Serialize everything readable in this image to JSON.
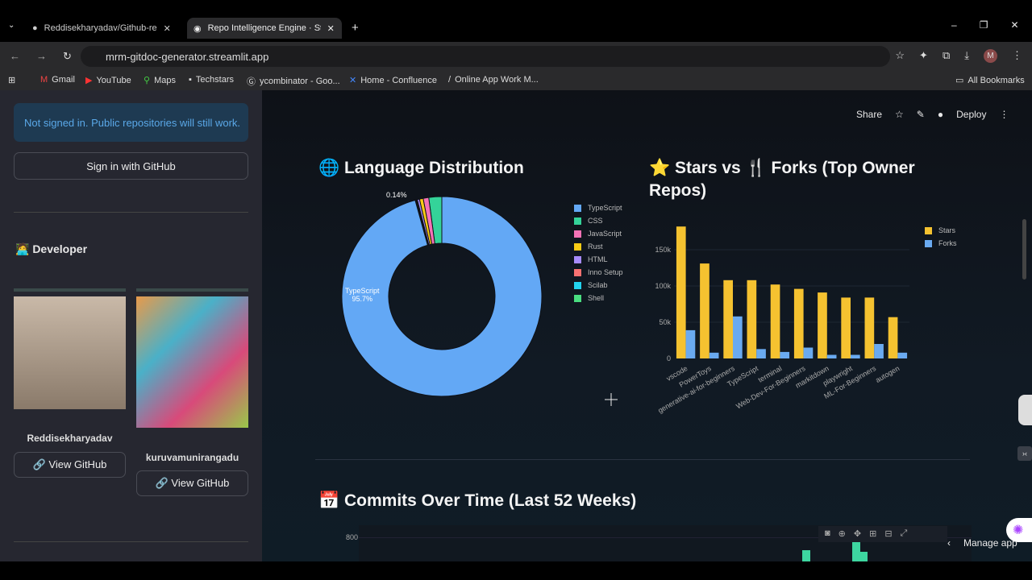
{
  "browser": {
    "tabs": [
      {
        "label": "Reddisekharyadav/Github-repo",
        "active": false
      },
      {
        "label": "Repo Intelligence Engine · Strea",
        "active": true
      }
    ],
    "url": "mrm-gitdoc-generator.streamlit.app",
    "profile_initial": "M",
    "bookmarks": [
      "Gmail",
      "YouTube",
      "Maps",
      "Techstars",
      "ycombinator - Goo...",
      "Home - Confluence",
      "Online App Work M..."
    ],
    "all_bookmarks": "All Bookmarks"
  },
  "sidebar": {
    "notice": "Not signed in. Public repositories will still work.",
    "signin": "Sign in with GitHub",
    "developer_heading": "🧑‍💻 Developer",
    "developers": [
      {
        "name": "Reddisekharyadav",
        "link": "🔗 View GitHub"
      },
      {
        "name": "kuruvamunirangadu",
        "link": "🔗 View GitHub"
      }
    ]
  },
  "header": {
    "share": "Share",
    "deploy": "Deploy"
  },
  "sections": {
    "lang_title": "🌐 Language Distribution",
    "stars_title_1": "⭐ Stars vs 🍴 Forks (Top Owner",
    "stars_title_2": "Repos)",
    "commits_title": "📅 Commits Over Time (Last 52 Weeks)",
    "commits_ytick": "800"
  },
  "manage_app": "Manage app",
  "chart_data": [
    {
      "type": "pie",
      "hole": true,
      "labels": [
        "TypeScript",
        "CSS",
        "JavaScript",
        "Rust",
        "HTML",
        "Inno Setup",
        "Scilab",
        "Shell"
      ],
      "values": [
        95.7,
        2.1,
        0.9,
        0.6,
        0.36,
        0.14,
        0.1,
        0.1
      ],
      "colors": [
        "#63a8f5",
        "#34d399",
        "#f472b6",
        "#facc15",
        "#a78bfa",
        "#f87171",
        "#22d3ee",
        "#4ade80"
      ],
      "slice_labels": {
        "main": "TypeScript",
        "main_pct": "95.7%",
        "small": "0.14%"
      },
      "legend": "right"
    },
    {
      "type": "bar",
      "categories": [
        "vscode",
        "PowerToys",
        "generative-ai-for-beginners",
        "TypeScript",
        "terminal",
        "Web-Dev-For-Beginners",
        "markitdown",
        "playwright",
        "ML-For-Beginners",
        "autogen"
      ],
      "series": [
        {
          "name": "Stars",
          "color": "#f5c230",
          "values": [
            182000,
            131000,
            108000,
            108000,
            102000,
            96000,
            91000,
            84000,
            84000,
            57000
          ]
        },
        {
          "name": "Forks",
          "color": "#6aaaf0",
          "values": [
            39000,
            8000,
            58000,
            13000,
            9000,
            15000,
            5000,
            5000,
            20000,
            8000
          ]
        }
      ],
      "yticks": [
        "0",
        "50k",
        "100k",
        "150k"
      ],
      "ylim": [
        0,
        190000
      ],
      "grid": true,
      "legend": "top-right"
    }
  ]
}
